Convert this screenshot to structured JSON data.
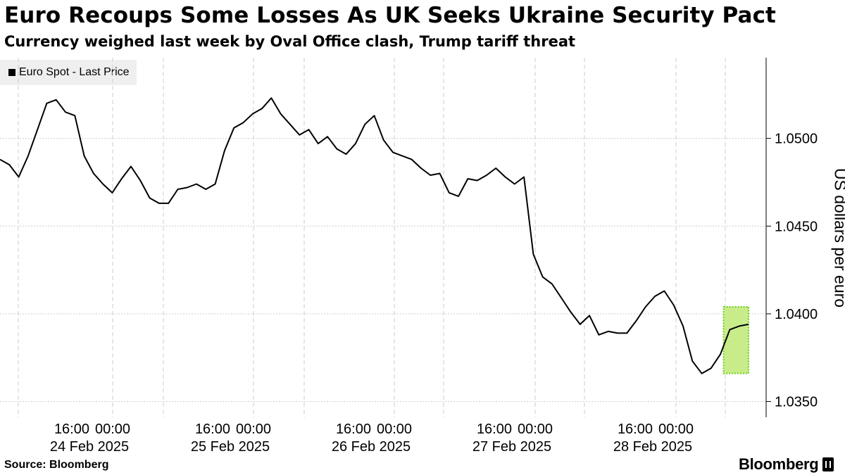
{
  "title": "Euro Recoups Some Losses As UK Seeks Ukraine Security Pact",
  "subtitle": "Currency weighed last week by Oval Office clash, Trump tariff threat",
  "source": "Source: Bloomberg",
  "brand": "Bloomberg",
  "colors": {
    "line": "#000000",
    "highlight_fill": "#c9ec8a",
    "highlight_border": "#6ccc1e",
    "grid": "#cccccc",
    "legend_bg": "#efefef"
  },
  "chart_data": {
    "type": "line",
    "title": "Euro Recoups Some Losses As UK Seeks Ukraine Security Pact",
    "subtitle": "Currency weighed last week by Oval Office clash, Trump tariff threat",
    "ylabel": "US dollars per euro",
    "xlabel": "",
    "ylim": [
      1.0341,
      1.0546
    ],
    "yticks": [
      "1.0500",
      "1.0450",
      "1.0400",
      "1.0350"
    ],
    "ytick_values": [
      1.05,
      1.045,
      1.04,
      1.035
    ],
    "x_time_labels": [
      "16:00",
      "00:00",
      "16:00",
      "00:00",
      "16:00",
      "00:00",
      "16:00",
      "00:00",
      "16:00",
      "00:00"
    ],
    "x_date_labels": [
      "24 Feb 2025",
      "25 Feb 2025",
      "26 Feb 2025",
      "27 Feb 2025",
      "28 Feb 2025"
    ],
    "grid": true,
    "legend_position": "top-left",
    "series": [
      {
        "name": "Euro Spot - Last Price",
        "x_hours": [
          0,
          3,
          6,
          9,
          12,
          15,
          18,
          21,
          24,
          27,
          30,
          33,
          36,
          39,
          42,
          45,
          48,
          51,
          54,
          57,
          60,
          63,
          66,
          69,
          72,
          75,
          78,
          81,
          84,
          87,
          90,
          93,
          96,
          99,
          102,
          105,
          108,
          111,
          114,
          117,
          120,
          123,
          126,
          129,
          132,
          135,
          138,
          141,
          144,
          147,
          150,
          153,
          156,
          159,
          162,
          165,
          168,
          171,
          174,
          177,
          180,
          183,
          186,
          189,
          192,
          195,
          198,
          201,
          204,
          207,
          210,
          213,
          216,
          219,
          222,
          225,
          228,
          231,
          234,
          237,
          240
        ],
        "values": [
          1.0488,
          1.0485,
          1.0478,
          1.049,
          1.0505,
          1.052,
          1.0522,
          1.0515,
          1.0513,
          1.049,
          1.048,
          1.0474,
          1.0469,
          1.0477,
          1.0484,
          1.0476,
          1.0466,
          1.0463,
          1.0463,
          1.0471,
          1.0472,
          1.0474,
          1.0471,
          1.0474,
          1.0493,
          1.0506,
          1.0509,
          1.0514,
          1.0517,
          1.0523,
          1.0514,
          1.0508,
          1.0502,
          1.0505,
          1.0497,
          1.0501,
          1.0494,
          1.0491,
          1.0497,
          1.0508,
          1.0513,
          1.0499,
          1.0492,
          1.049,
          1.0488,
          1.0483,
          1.0479,
          1.048,
          1.0469,
          1.0467,
          1.0477,
          1.0476,
          1.0479,
          1.0483,
          1.0478,
          1.0474,
          1.0478,
          1.0434,
          1.0421,
          1.0417,
          1.0409,
          1.0401,
          1.0394,
          1.0399,
          1.0388,
          1.039,
          1.0389,
          1.0389,
          1.0396,
          1.0404,
          1.041,
          1.0413,
          1.0405,
          1.0393,
          1.0373,
          1.0366,
          1.0369,
          1.0377,
          1.0391,
          1.0393,
          1.0394
        ]
      }
    ],
    "highlight": {
      "x_start_hours": 232,
      "x_end_hours": 240,
      "y_min": 1.0366,
      "y_max": 1.0404
    }
  }
}
